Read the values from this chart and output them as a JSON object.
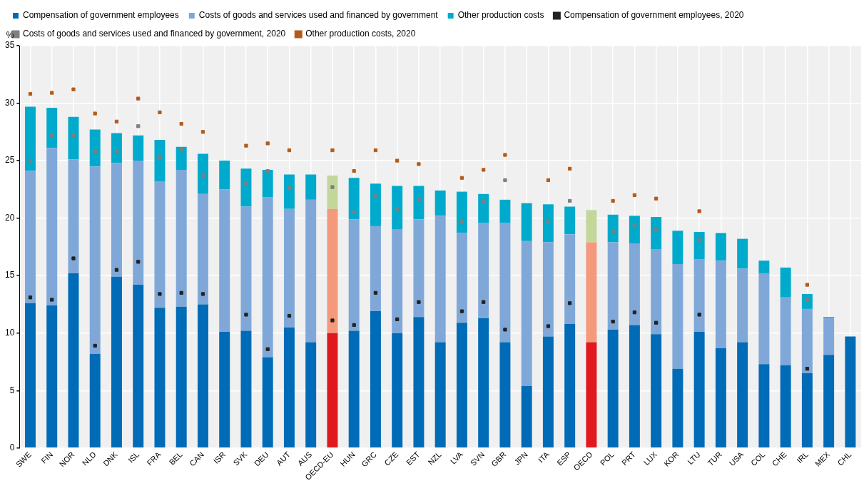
{
  "chart_data": {
    "type": "bar",
    "stacked": true,
    "ylabel": "%",
    "legend": "top",
    "grid": true,
    "marker": "square",
    "categories": [
      "SWE",
      "FIN",
      "NOR",
      "NLD",
      "DNK",
      "ISL",
      "FRA",
      "BEL",
      "CAN",
      "ISR",
      "SVK",
      "DEU",
      "AUT",
      "AUS",
      "OECD-EU",
      "HUN",
      "GRC",
      "CZE",
      "EST",
      "NZL",
      "LVA",
      "SVN",
      "GBR",
      "JPN",
      "ITA",
      "ESP",
      "OECD",
      "POL",
      "PRT",
      "LUX",
      "KOR",
      "LTU",
      "TUR",
      "USA",
      "COL",
      "CHE",
      "IRL",
      "MEX",
      "CHL"
    ],
    "ylim": [
      0,
      35
    ],
    "yticks": [
      0,
      5,
      10,
      15,
      20,
      25,
      30,
      35
    ],
    "series": [
      {
        "name": "Compensation of government employees",
        "color": "#006bb6",
        "colors": [
          "#006bb6",
          "#006bb6",
          "#006bb6",
          "#006bb6",
          "#006bb6",
          "#006bb6",
          "#006bb6",
          "#006bb6",
          "#006bb6",
          "#006bb6",
          "#006bb6",
          "#006bb6",
          "#006bb6",
          "#006bb6",
          "#e0191f",
          "#006bb6",
          "#006bb6",
          "#006bb6",
          "#006bb6",
          "#006bb6",
          "#006bb6",
          "#006bb6",
          "#006bb6",
          "#006bb6",
          "#006bb6",
          "#006bb6",
          "#e0191f",
          "#006bb6",
          "#006bb6",
          "#006bb6",
          "#006bb6",
          "#006bb6",
          "#006bb6",
          "#006bb6",
          "#006bb6",
          "#006bb6",
          "#006bb6",
          "#006bb6",
          "#006bb6"
        ],
        "values": [
          12.6,
          12.4,
          15.2,
          8.2,
          14.9,
          14.2,
          12.2,
          12.3,
          12.5,
          10.1,
          10.2,
          7.9,
          10.5,
          9.2,
          10.0,
          10.2,
          11.9,
          10.0,
          11.4,
          9.2,
          10.9,
          11.3,
          9.2,
          5.4,
          9.7,
          10.8,
          9.2,
          10.3,
          10.7,
          9.9,
          6.9,
          10.1,
          8.7,
          9.2,
          7.3,
          7.2,
          6.5,
          8.1,
          9.7
        ]
      },
      {
        "name": "Costs of goods and services used and financed by government",
        "color": "#7fa8d9",
        "colors": [
          "#7fa8d9",
          "#7fa8d9",
          "#7fa8d9",
          "#7fa8d9",
          "#7fa8d9",
          "#7fa8d9",
          "#7fa8d9",
          "#7fa8d9",
          "#7fa8d9",
          "#7fa8d9",
          "#7fa8d9",
          "#7fa8d9",
          "#7fa8d9",
          "#7fa8d9",
          "#f5997c",
          "#7fa8d9",
          "#7fa8d9",
          "#7fa8d9",
          "#7fa8d9",
          "#7fa8d9",
          "#7fa8d9",
          "#7fa8d9",
          "#7fa8d9",
          "#7fa8d9",
          "#7fa8d9",
          "#7fa8d9",
          "#f5997c",
          "#7fa8d9",
          "#7fa8d9",
          "#7fa8d9",
          "#7fa8d9",
          "#7fa8d9",
          "#7fa8d9",
          "#7fa8d9",
          "#7fa8d9",
          "#7fa8d9",
          "#7fa8d9",
          "#7fa8d9",
          "#7fa8d9"
        ],
        "values": [
          11.5,
          13.7,
          9.9,
          16.3,
          9.9,
          10.8,
          11.0,
          11.9,
          9.6,
          12.4,
          10.8,
          13.9,
          10.3,
          12.4,
          10.8,
          9.7,
          7.4,
          9.0,
          8.5,
          11.0,
          7.8,
          8.3,
          10.4,
          12.6,
          8.2,
          7.8,
          8.7,
          7.6,
          7.1,
          7.4,
          9.1,
          6.3,
          7.6,
          6.4,
          7.9,
          5.9,
          5.6,
          3.2,
          null
        ]
      },
      {
        "name": "Other production costs",
        "color": "#00aacc",
        "colors": [
          "#00aacc",
          "#00aacc",
          "#00aacc",
          "#00aacc",
          "#00aacc",
          "#00aacc",
          "#00aacc",
          "#00aacc",
          "#00aacc",
          "#00aacc",
          "#00aacc",
          "#00aacc",
          "#00aacc",
          "#00aacc",
          "#c4d79b",
          "#00aacc",
          "#00aacc",
          "#00aacc",
          "#00aacc",
          "#00aacc",
          "#00aacc",
          "#00aacc",
          "#00aacc",
          "#00aacc",
          "#00aacc",
          "#00aacc",
          "#c4d79b",
          "#00aacc",
          "#00aacc",
          "#00aacc",
          "#00aacc",
          "#00aacc",
          "#00aacc",
          "#00aacc",
          "#00aacc",
          "#00aacc",
          "#00aacc",
          "#00aacc",
          "#00aacc"
        ],
        "values": [
          5.6,
          3.5,
          3.7,
          3.2,
          2.6,
          2.2,
          3.6,
          2.0,
          3.5,
          2.5,
          3.3,
          2.4,
          3.0,
          2.2,
          2.9,
          3.6,
          3.7,
          3.8,
          2.9,
          2.2,
          3.6,
          2.5,
          2.0,
          3.3,
          3.3,
          2.4,
          2.8,
          2.4,
          2.4,
          2.8,
          2.9,
          2.4,
          2.4,
          2.6,
          1.1,
          2.6,
          1.3,
          0.1,
          null
        ]
      },
      {
        "name": "Compensation of government employees, 2020",
        "type": "scatter",
        "color": "#222222",
        "values": [
          13.1,
          12.9,
          16.5,
          8.9,
          15.5,
          16.2,
          13.4,
          13.5,
          13.4,
          null,
          11.6,
          8.6,
          11.5,
          null,
          11.1,
          10.7,
          13.5,
          11.2,
          12.7,
          null,
          11.9,
          12.7,
          10.3,
          null,
          10.6,
          12.6,
          null,
          11.0,
          11.8,
          10.9,
          null,
          11.6,
          null,
          null,
          null,
          null,
          6.9,
          null,
          null
        ]
      },
      {
        "name": "Costs of goods and services used and financed by government, 2020",
        "type": "scatter",
        "color": "#7f7f7f",
        "values": [
          25.0,
          27.2,
          27.2,
          25.8,
          25.8,
          28.0,
          25.3,
          26.0,
          23.7,
          null,
          23.0,
          24.1,
          22.6,
          null,
          22.7,
          20.5,
          21.9,
          20.8,
          21.6,
          null,
          19.7,
          21.5,
          23.3,
          null,
          19.7,
          21.5,
          null,
          18.9,
          19.4,
          19.0,
          null,
          18.1,
          null,
          null,
          null,
          null,
          12.9,
          null,
          null
        ]
      },
      {
        "name": "Other production costs, 2020",
        "type": "scatter",
        "color": "#b55b1a",
        "values": [
          30.8,
          30.9,
          31.2,
          29.1,
          28.4,
          30.4,
          29.2,
          28.2,
          27.5,
          null,
          26.3,
          26.5,
          25.9,
          null,
          25.9,
          24.1,
          25.9,
          25.0,
          24.7,
          null,
          23.5,
          24.2,
          25.5,
          null,
          23.3,
          24.3,
          null,
          21.5,
          22.0,
          21.7,
          null,
          20.6,
          null,
          null,
          null,
          null,
          14.2,
          null,
          null
        ]
      }
    ]
  }
}
